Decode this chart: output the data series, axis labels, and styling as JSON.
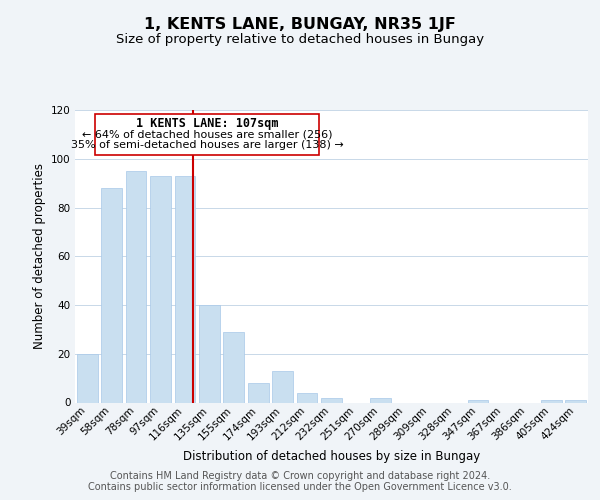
{
  "title": "1, KENTS LANE, BUNGAY, NR35 1JF",
  "subtitle": "Size of property relative to detached houses in Bungay",
  "xlabel": "Distribution of detached houses by size in Bungay",
  "ylabel": "Number of detached properties",
  "categories": [
    "39sqm",
    "58sqm",
    "78sqm",
    "97sqm",
    "116sqm",
    "135sqm",
    "155sqm",
    "174sqm",
    "193sqm",
    "212sqm",
    "232sqm",
    "251sqm",
    "270sqm",
    "289sqm",
    "309sqm",
    "328sqm",
    "347sqm",
    "367sqm",
    "386sqm",
    "405sqm",
    "424sqm"
  ],
  "values": [
    20,
    88,
    95,
    93,
    93,
    40,
    29,
    8,
    13,
    4,
    2,
    0,
    2,
    0,
    0,
    0,
    1,
    0,
    0,
    1,
    1
  ],
  "bar_color": "#c9dff0",
  "bar_edge_color": "#a8c8e8",
  "vline_bin_index": 4,
  "vline_color": "#cc0000",
  "annotation_title": "1 KENTS LANE: 107sqm",
  "annotation_line1": "← 64% of detached houses are smaller (256)",
  "annotation_line2": "35% of semi-detached houses are larger (138) →",
  "annotation_box_color": "#ffffff",
  "annotation_border_color": "#cc0000",
  "ylim": [
    0,
    120
  ],
  "yticks": [
    0,
    20,
    40,
    60,
    80,
    100,
    120
  ],
  "footer1": "Contains HM Land Registry data © Crown copyright and database right 2024.",
  "footer2": "Contains public sector information licensed under the Open Government Licence v3.0.",
  "background_color": "#f0f4f8",
  "plot_background_color": "#ffffff",
  "grid_color": "#c8d8e8",
  "title_fontsize": 11.5,
  "subtitle_fontsize": 9.5,
  "axis_label_fontsize": 8.5,
  "tick_fontsize": 7.5,
  "annotation_title_fontsize": 8.5,
  "annotation_text_fontsize": 8,
  "footer_fontsize": 7
}
